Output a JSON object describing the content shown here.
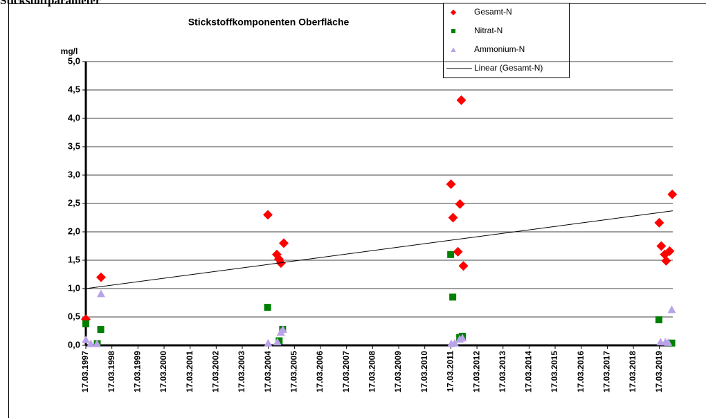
{
  "page_title": "Stickstoffparameter",
  "chart_data": {
    "type": "scatter",
    "title": "Stickstoffkomponenten Oberfläche",
    "y_label": "mg/l",
    "xlim": [
      "1997-03-17",
      "2019-09-20"
    ],
    "ylim": [
      0,
      5
    ],
    "yticks": [
      {
        "value": 0,
        "label": "0,0"
      },
      {
        "value": 0.5,
        "label": "0,5"
      },
      {
        "value": 1,
        "label": "1,0"
      },
      {
        "value": 1.5,
        "label": "1,5"
      },
      {
        "value": 2,
        "label": "2,0"
      },
      {
        "value": 2.5,
        "label": "2,5"
      },
      {
        "value": 3,
        "label": "3,0"
      },
      {
        "value": 3.5,
        "label": "3,5"
      },
      {
        "value": 4,
        "label": "4,0"
      },
      {
        "value": 4.5,
        "label": "4,5"
      },
      {
        "value": 5,
        "label": "5,0"
      }
    ],
    "xticks": [
      {
        "value": "1997-03-17",
        "label": "17.03.1997"
      },
      {
        "value": "1998-03-17",
        "label": "17.03.1998"
      },
      {
        "value": "1999-03-17",
        "label": "17.03.1999"
      },
      {
        "value": "2000-03-17",
        "label": "17.03.2000"
      },
      {
        "value": "2001-03-17",
        "label": "17.03.2001"
      },
      {
        "value": "2002-03-17",
        "label": "17.03.2002"
      },
      {
        "value": "2003-03-17",
        "label": "17.03.2003"
      },
      {
        "value": "2004-03-17",
        "label": "17.03.2004"
      },
      {
        "value": "2005-03-17",
        "label": "17.03.2005"
      },
      {
        "value": "2006-03-17",
        "label": "17.03.2006"
      },
      {
        "value": "2007-03-17",
        "label": "17.03.2007"
      },
      {
        "value": "2008-03-17",
        "label": "17.03.2008"
      },
      {
        "value": "2009-03-17",
        "label": "17.03.2009"
      },
      {
        "value": "2010-03-17",
        "label": "17.03.2010"
      },
      {
        "value": "2011-03-17",
        "label": "17.03.2011"
      },
      {
        "value": "2012-03-17",
        "label": "17.03.2012"
      },
      {
        "value": "2013-03-17",
        "label": "17.03.2013"
      },
      {
        "value": "2014-03-17",
        "label": "17.03.2014"
      },
      {
        "value": "2015-03-17",
        "label": "17.03.2015"
      },
      {
        "value": "2016-03-17",
        "label": "17.03.2016"
      },
      {
        "value": "2017-03-17",
        "label": "17.03.2017"
      },
      {
        "value": "2018-03-17",
        "label": "17.03.2018"
      },
      {
        "value": "2019-03-17",
        "label": "17.03.2019"
      }
    ],
    "grid": true,
    "series": [
      {
        "name": "Gesamt-N",
        "color": "#ff0000",
        "marker": "diamond",
        "x": [
          "1997-03-17",
          "1997-10-16",
          "2004-03-10",
          "2004-07-13",
          "2004-08-11",
          "2004-09-09",
          "2004-10-19",
          "2011-03-19",
          "2011-04-17",
          "2011-06-24",
          "2011-07-23",
          "2011-08-11",
          "2011-09-09",
          "2019-03-14",
          "2019-04-12",
          "2019-05-30",
          "2019-06-19",
          "2019-08-07",
          "2019-09-13"
        ],
        "values": [
          0.46,
          1.2,
          2.3,
          1.6,
          1.52,
          1.45,
          1.8,
          2.84,
          2.25,
          1.65,
          2.49,
          4.32,
          1.4,
          2.16,
          1.75,
          1.6,
          1.49,
          1.66,
          2.66
        ]
      },
      {
        "name": "Nitrat-N",
        "color": "#008000",
        "marker": "square",
        "x": [
          "1997-03-17",
          "1997-08-24",
          "1997-10-12",
          "2004-03-06",
          "2004-08-15",
          "2004-10-03",
          "2011-03-15",
          "2011-04-13",
          "2011-07-19",
          "2011-08-27",
          "2019-03-10",
          "2019-09-06"
        ],
        "values": [
          0.38,
          0.03,
          0.28,
          0.67,
          0.08,
          0.28,
          1.6,
          0.85,
          0.14,
          0.16,
          0.45,
          0.04
        ]
      },
      {
        "name": "Ammonium-N",
        "color": "#b9a3e8",
        "marker": "triangle",
        "x": [
          "1997-03-17",
          "1997-05-24",
          "1997-08-20",
          "1997-10-16",
          "2004-03-14",
          "2004-07-21",
          "2004-09-08",
          "2004-10-07",
          "2011-03-23",
          "2011-05-11",
          "2011-07-19",
          "2011-08-27",
          "2019-04-02",
          "2019-06-09",
          "2019-07-18",
          "2019-09-06"
        ],
        "values": [
          0.1,
          0.03,
          0.03,
          0.91,
          0.04,
          0.06,
          0.23,
          0.28,
          0.03,
          0.04,
          0.11,
          0.13,
          0.06,
          0.06,
          0.05,
          0.63
        ]
      },
      {
        "name": "Linear (Gesamt-N)",
        "color": "#000000",
        "marker": "line",
        "x": [
          "1997-03-17",
          "2019-09-20"
        ],
        "values": [
          1.0,
          2.37
        ]
      }
    ]
  }
}
